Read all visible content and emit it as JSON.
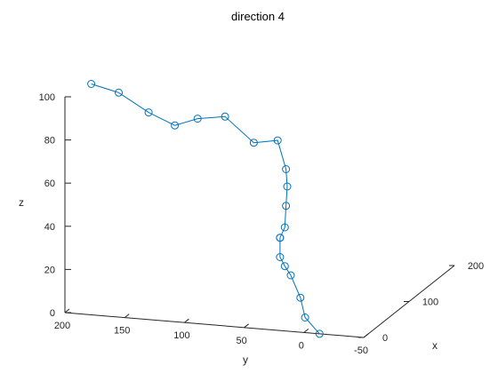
{
  "chart_data": {
    "type": "scatter",
    "title": "direction 4",
    "xlabel": "x",
    "ylabel": "y",
    "zlabel": "z",
    "xlim": [
      0,
      200
    ],
    "ylim": [
      -50,
      200
    ],
    "zlim": [
      0,
      100
    ],
    "x_ticks": [
      "0",
      "100",
      "200"
    ],
    "y_ticks": [
      "200",
      "150",
      "100",
      "50",
      "0",
      "-50"
    ],
    "z_ticks": [
      "0",
      "20",
      "40",
      "60",
      "80",
      "100"
    ],
    "line_color": "#0072BD",
    "marker": "circle",
    "grid": false,
    "series": [
      {
        "points": [
          {
            "y": -13,
            "z": 0
          },
          {
            "y": -1,
            "z": 7
          },
          {
            "y": 3,
            "z": 16
          },
          {
            "y": 11,
            "z": 26
          },
          {
            "y": 16,
            "z": 30
          },
          {
            "y": 20,
            "z": 34
          },
          {
            "y": 20,
            "z": 43
          },
          {
            "y": 20,
            "z": 43
          },
          {
            "y": 16,
            "z": 48
          },
          {
            "y": 15,
            "z": 58
          },
          {
            "y": 14,
            "z": 67
          },
          {
            "y": 15,
            "z": 75
          },
          {
            "y": 22,
            "z": 88
          },
          {
            "y": 42,
            "z": 86
          },
          {
            "y": 66,
            "z": 97
          },
          {
            "y": 89,
            "z": 95
          },
          {
            "y": 108,
            "z": 91
          },
          {
            "y": 130,
            "z": 96
          },
          {
            "y": 155,
            "z": 104
          },
          {
            "y": 178,
            "z": 107
          }
        ]
      }
    ]
  }
}
